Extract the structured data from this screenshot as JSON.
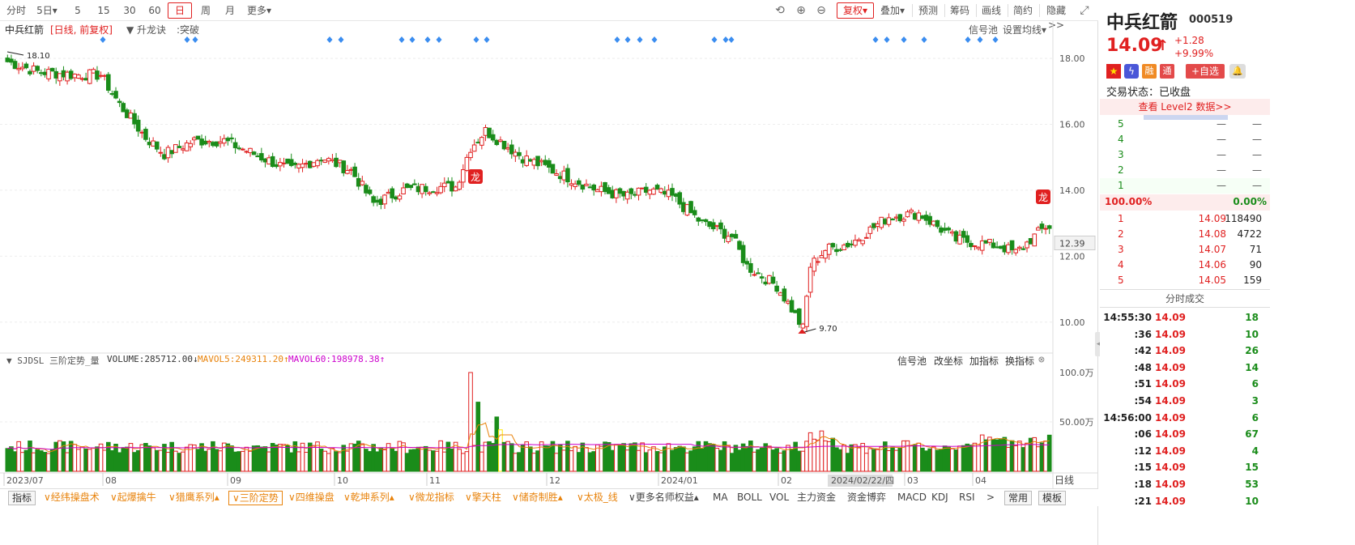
{
  "toolbar": {
    "period_buttons": [
      "分时",
      "5日▾",
      "5",
      "15",
      "30",
      "60",
      "日",
      "周",
      "月",
      "更多▾"
    ],
    "active_period": "日",
    "right_buttons": [
      "复权▾",
      "叠加▾",
      "预测",
      "筹码",
      "画线",
      "简约",
      "隐藏>>"
    ]
  },
  "info": {
    "stock_name": "中兵红箭",
    "mode": "[日线, 前复权]",
    "indicator": "▼ 升龙诀",
    "signal_label": ":突破",
    "signal_pool": "信号池",
    "set_ma": "设置均线▾"
  },
  "price_axis": {
    "labels": [
      "18.00",
      "16.00",
      "14.00",
      "12.00",
      "10.00"
    ],
    "current_price_tag": "12.39",
    "high_label": "18.10",
    "low_label": "9.70"
  },
  "dragon_marks": [
    "龙",
    "龙"
  ],
  "volume": {
    "header_name": "▼ SJDSL 三阶定势_量",
    "volume_label": "VOLUME:285712.00↓",
    "ma5_label": "MAVOL5:249311.20↑",
    "ma60_label": "MAVOL60:198978.38↑",
    "right_links": [
      "信号池",
      "改坐标",
      "加指标",
      "换指标"
    ],
    "axis_labels": [
      "100.0万",
      "50.00万"
    ]
  },
  "x_axis": {
    "labels": [
      "2023/07",
      "08",
      "09",
      "10",
      "11",
      "12",
      "2024/01",
      "02",
      "03",
      "04"
    ],
    "crosshair_date": "2024/02/22/四",
    "right_label": "日线"
  },
  "bottom_tabs": {
    "items": [
      "指标",
      "∨经纬操盘术",
      "∨起爆擒牛",
      "∨猎鹰系列▴",
      "∨三阶定势",
      "∨四维操盘",
      "∨乾坤系列▴",
      "∨微龙指标",
      "∨擎天柱",
      "∨储奇制胜▴",
      "∨太极_线",
      "∨更多名师权益▴",
      "MA",
      "BOLL",
      "VOL",
      "主力资金",
      "资金博弈",
      "MACD",
      "KDJ",
      "RSI",
      ">"
    ],
    "right": [
      "常用",
      "模板"
    ]
  },
  "quote": {
    "name": "中兵红箭",
    "code": "000519",
    "price": "14.09",
    "arrow": "↑",
    "change": "+1.28",
    "change_pct": "+9.99%",
    "badges": [
      "融",
      "通"
    ],
    "add_watch": "+自选",
    "status_label": "交易状态：已收盘",
    "level2_link": "查看 Level2 数据>>",
    "colors": {
      "up": "#e02020",
      "down": "#1a8c1a"
    }
  },
  "order_book": {
    "asks": [
      {
        "level": "5",
        "price": "—",
        "vol": "—"
      },
      {
        "level": "4",
        "price": "—",
        "vol": "—"
      },
      {
        "level": "3",
        "price": "—",
        "vol": "—"
      },
      {
        "level": "2",
        "price": "—",
        "vol": "—"
      },
      {
        "level": "1",
        "price": "—",
        "vol": "—"
      }
    ],
    "buy_ratio": "100.00%",
    "sell_ratio": "0.00%",
    "bids": [
      {
        "level": "1",
        "price": "14.09",
        "vol": "118490"
      },
      {
        "level": "2",
        "price": "14.08",
        "vol": "4722"
      },
      {
        "level": "3",
        "price": "14.07",
        "vol": "71"
      },
      {
        "level": "4",
        "price": "14.06",
        "vol": "90"
      },
      {
        "level": "5",
        "price": "14.05",
        "vol": "159"
      }
    ]
  },
  "trades": {
    "title": "分时成交",
    "rows": [
      {
        "time": "14:55:30",
        "price": "14.09",
        "vol": "18"
      },
      {
        "time": ":36",
        "price": "14.09",
        "vol": "10"
      },
      {
        "time": ":42",
        "price": "14.09",
        "vol": "26"
      },
      {
        "time": ":48",
        "price": "14.09",
        "vol": "14"
      },
      {
        "time": ":51",
        "price": "14.09",
        "vol": "6"
      },
      {
        "time": ":54",
        "price": "14.09",
        "vol": "3"
      },
      {
        "time": "14:56:00",
        "price": "14.09",
        "vol": "6"
      },
      {
        "time": ":06",
        "price": "14.09",
        "vol": "67"
      },
      {
        "time": ":12",
        "price": "14.09",
        "vol": "4"
      },
      {
        "time": ":15",
        "price": "14.09",
        "vol": "15"
      },
      {
        "time": ":18",
        "price": "14.09",
        "vol": "53"
      },
      {
        "time": ":21",
        "price": "14.09",
        "vol": "10"
      }
    ]
  },
  "chart_data": {
    "type": "candlestick",
    "y_range": [
      9.7,
      18.1
    ],
    "volume_range": [
      0,
      1000000
    ],
    "x_range": [
      "2023/07",
      "2024/04"
    ],
    "anchors": [
      [
        0,
        17.9
      ],
      [
        8,
        17.6
      ],
      [
        18,
        17.5
      ],
      [
        25,
        17.5
      ],
      [
        30,
        16.6
      ],
      [
        37,
        15.6
      ],
      [
        42,
        15.1
      ],
      [
        50,
        15.5
      ],
      [
        58,
        15.5
      ],
      [
        68,
        15.0
      ],
      [
        76,
        14.6
      ],
      [
        84,
        15.0
      ],
      [
        92,
        14.6
      ],
      [
        98,
        13.6
      ],
      [
        106,
        14.0
      ],
      [
        114,
        14.1
      ],
      [
        120,
        14.1
      ],
      [
        124,
        15.3
      ],
      [
        128,
        15.8
      ],
      [
        138,
        15.0
      ],
      [
        148,
        14.5
      ],
      [
        158,
        14.0
      ],
      [
        166,
        13.8
      ],
      [
        172,
        14.0
      ],
      [
        178,
        13.8
      ],
      [
        186,
        13.0
      ],
      [
        194,
        12.6
      ],
      [
        198,
        11.7
      ],
      [
        202,
        11.4
      ],
      [
        206,
        11.1
      ],
      [
        210,
        10.4
      ],
      [
        213,
        9.8
      ],
      [
        215,
        11.7
      ],
      [
        219,
        12.2
      ],
      [
        226,
        12.4
      ],
      [
        236,
        13.2
      ],
      [
        244,
        13.3
      ],
      [
        254,
        12.5
      ],
      [
        266,
        12.3
      ],
      [
        270,
        12.1
      ],
      [
        274,
        12.5
      ],
      [
        278,
        12.9
      ]
    ],
    "volume_spikes": [
      [
        124,
        1000000
      ],
      [
        126,
        700000
      ],
      [
        131,
        550000
      ],
      [
        132,
        420000
      ]
    ],
    "signal_rows": [
      [
        127,
        231,
        241,
        407,
        421,
        496,
        509,
        528,
        542,
        588,
        601,
        762,
        775,
        790,
        808,
        882,
        896,
        903,
        1081,
        1095,
        1116,
        1141,
        1195,
        1210,
        1229
      ]
    ]
  }
}
